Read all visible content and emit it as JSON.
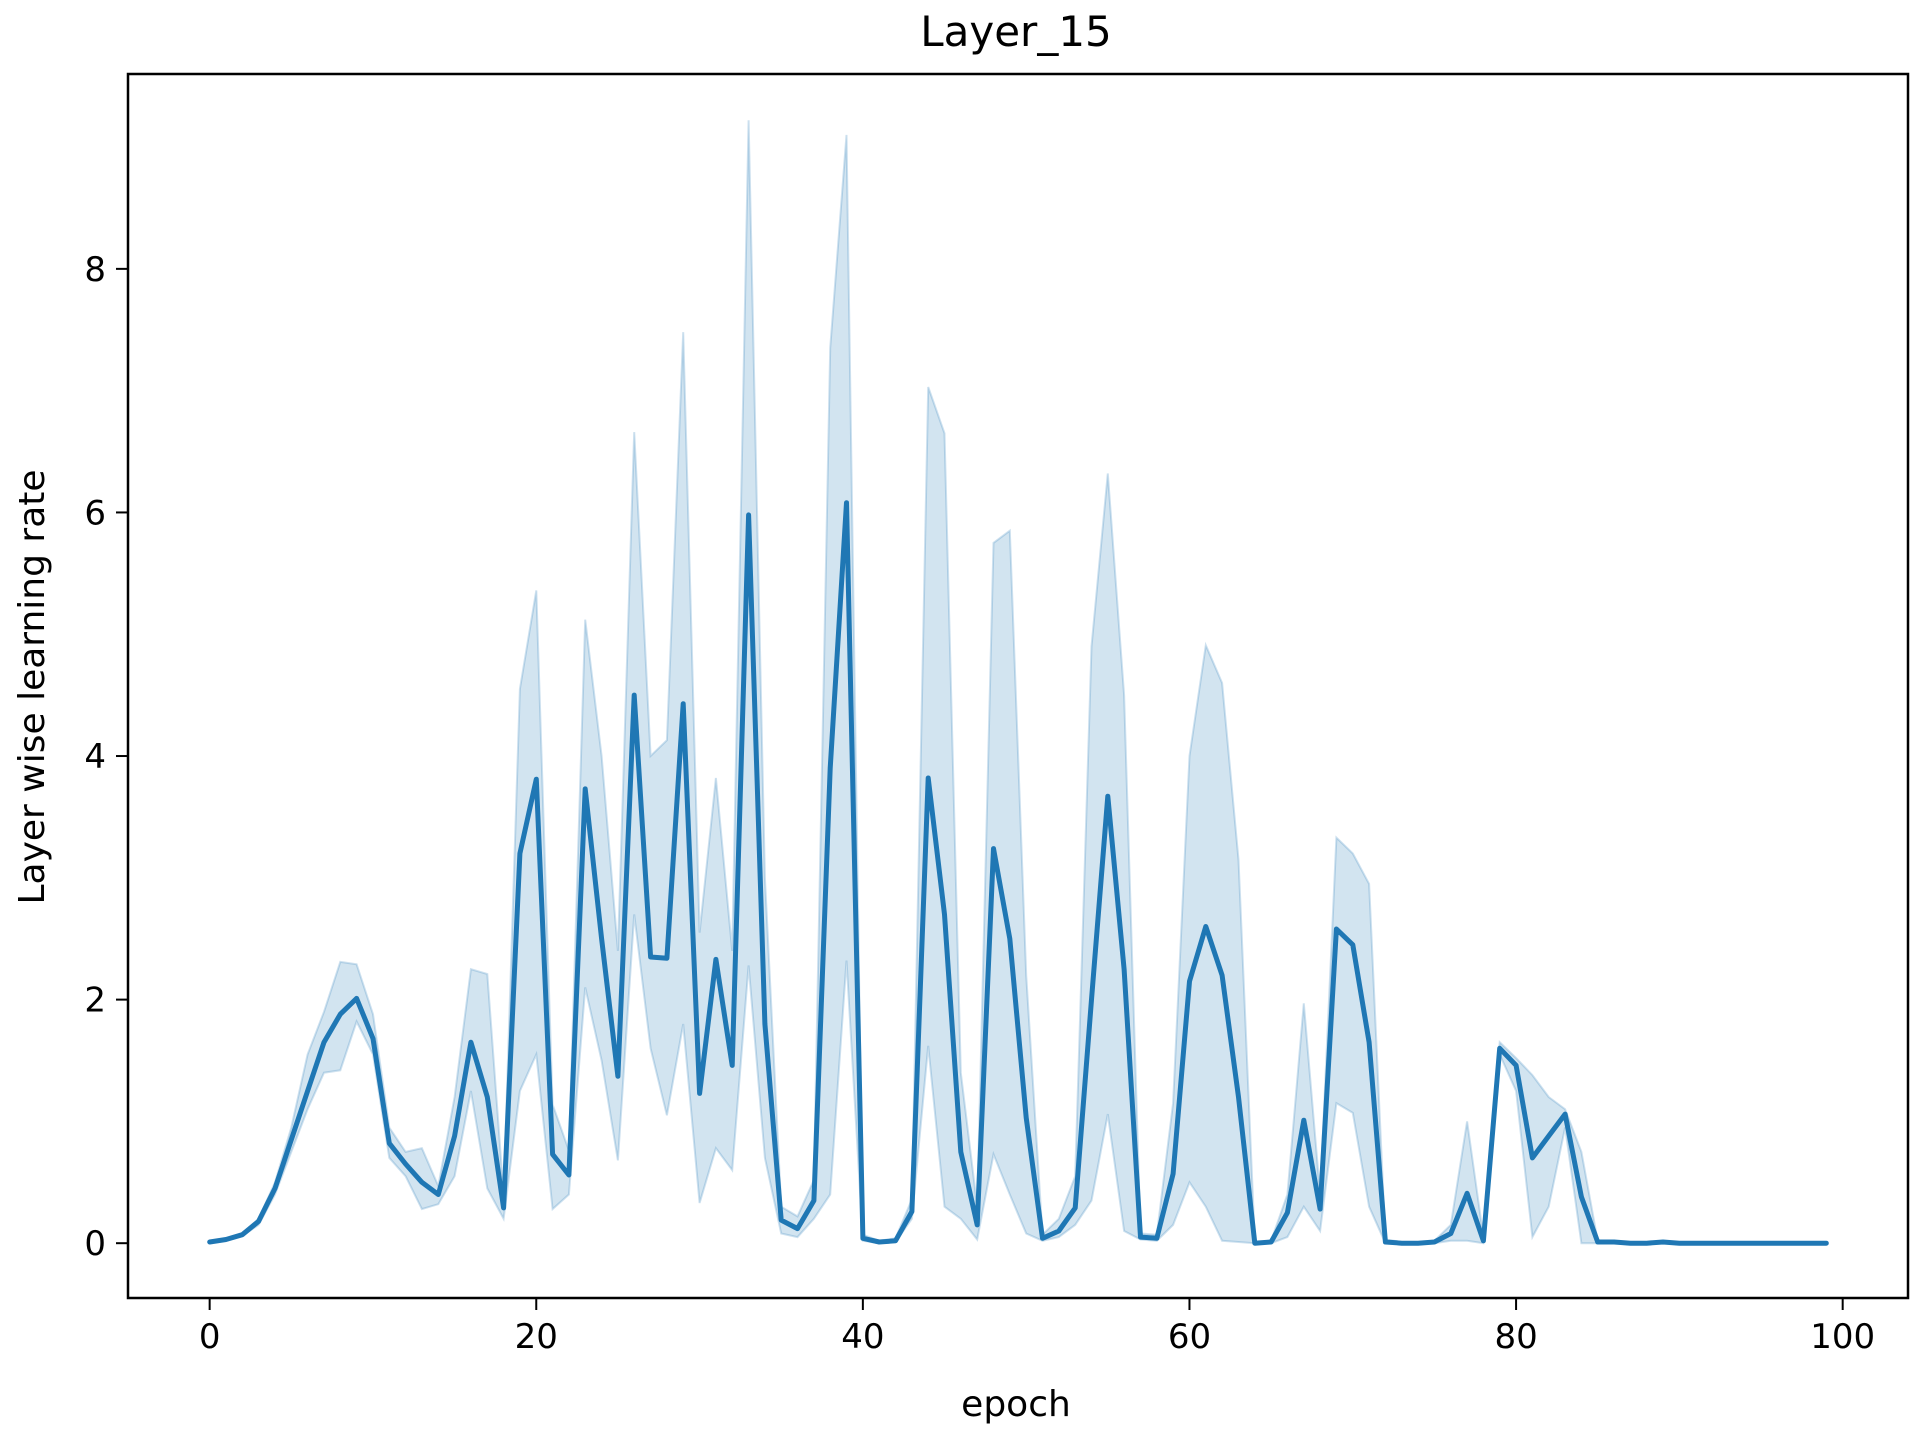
{
  "chart_data": {
    "type": "line",
    "title": "Layer_15",
    "xlabel": "epoch",
    "ylabel": "Layer wise learning rate",
    "xlim": [
      -5,
      104
    ],
    "ylim": [
      -0.45,
      9.6
    ],
    "xticks": [
      0,
      20,
      40,
      60,
      80,
      100
    ],
    "yticks": [
      0,
      2,
      4,
      6,
      8
    ],
    "grid": false,
    "legend": "none",
    "colors": {
      "line": "#1f77b4",
      "band": "#1f77b4"
    },
    "series": [
      {
        "x": [
          0,
          1,
          2,
          3,
          4,
          5,
          6,
          7,
          8,
          9,
          10,
          11,
          12,
          13,
          14,
          15,
          16,
          17,
          18,
          19,
          20,
          21,
          22,
          23,
          24,
          25,
          26,
          27,
          28,
          29,
          30,
          31,
          32,
          33,
          34,
          35,
          36,
          37,
          38,
          39,
          40,
          41,
          42,
          43,
          44,
          45,
          46,
          47,
          48,
          49,
          50,
          51,
          52,
          53,
          54,
          55,
          56,
          57,
          58,
          59,
          60,
          61,
          62,
          63,
          64,
          65,
          66,
          67,
          68,
          69,
          70,
          71,
          72,
          73,
          74,
          75,
          76,
          77,
          78,
          79,
          80,
          81,
          82,
          83,
          84,
          85,
          86,
          87,
          88,
          89,
          90,
          91,
          92,
          93,
          94,
          95,
          96,
          97,
          98,
          99
        ],
        "values": [
          0.01,
          0.03,
          0.07,
          0.18,
          0.45,
          0.85,
          1.25,
          1.65,
          1.88,
          2.01,
          1.68,
          0.82,
          0.65,
          0.5,
          0.4,
          0.88,
          1.65,
          1.2,
          0.29,
          3.2,
          3.81,
          0.73,
          0.56,
          3.73,
          2.5,
          1.37,
          4.5,
          2.35,
          2.34,
          4.43,
          1.23,
          2.33,
          1.46,
          5.98,
          1.8,
          0.19,
          0.12,
          0.35,
          3.9,
          6.08,
          0.04,
          0.01,
          0.02,
          0.26,
          3.82,
          2.7,
          0.75,
          0.15,
          3.24,
          2.5,
          1.03,
          0.04,
          0.1,
          0.29,
          2.0,
          3.67,
          2.25,
          0.05,
          0.04,
          0.57,
          2.15,
          2.6,
          2.2,
          1.2,
          0.0,
          0.01,
          0.25,
          1.01,
          0.28,
          2.58,
          2.45,
          1.65,
          0.01,
          0.0,
          0.0,
          0.01,
          0.08,
          0.41,
          0.02,
          1.6,
          1.46,
          0.7,
          0.88,
          1.06,
          0.38,
          0.01,
          0.01,
          0.0,
          0.0,
          0.01,
          0.0,
          0.0,
          0.0,
          0.0,
          0.0,
          0.0,
          0.0,
          0.0,
          0.0,
          0.0
        ],
        "lower": [
          0.01,
          0.03,
          0.06,
          0.15,
          0.4,
          0.75,
          1.1,
          1.4,
          1.42,
          1.82,
          1.55,
          0.7,
          0.55,
          0.28,
          0.32,
          0.55,
          1.25,
          0.45,
          0.2,
          1.25,
          1.55,
          0.28,
          0.4,
          2.1,
          1.5,
          0.68,
          2.7,
          1.6,
          1.05,
          1.8,
          0.33,
          0.78,
          0.6,
          2.28,
          0.7,
          0.08,
          0.05,
          0.2,
          0.4,
          2.32,
          0.02,
          0.0,
          0.01,
          0.2,
          1.62,
          0.3,
          0.2,
          0.03,
          0.73,
          0.4,
          0.08,
          0.02,
          0.05,
          0.15,
          0.35,
          1.06,
          0.1,
          0.03,
          0.02,
          0.15,
          0.5,
          0.3,
          0.02,
          0.01,
          0.0,
          0.0,
          0.05,
          0.3,
          0.1,
          1.15,
          1.07,
          0.3,
          0.0,
          0.0,
          0.0,
          0.0,
          0.02,
          0.02,
          0.0,
          1.55,
          1.25,
          0.05,
          0.3,
          0.95,
          0.0,
          0.0,
          0.0,
          0.0,
          0.0,
          0.0,
          0.0,
          0.0,
          0.0,
          0.0,
          0.0,
          0.0,
          0.0,
          0.0,
          0.0,
          0.0
        ],
        "upper": [
          0.01,
          0.04,
          0.08,
          0.2,
          0.5,
          0.95,
          1.55,
          1.9,
          2.31,
          2.29,
          1.88,
          0.95,
          0.75,
          0.78,
          0.47,
          1.2,
          2.25,
          2.21,
          0.4,
          4.55,
          5.36,
          1.14,
          0.76,
          5.12,
          4.0,
          2.4,
          6.66,
          4.0,
          4.13,
          7.48,
          2.55,
          3.82,
          2.4,
          9.22,
          3.0,
          0.3,
          0.22,
          0.52,
          7.35,
          9.1,
          0.07,
          0.02,
          0.04,
          0.36,
          7.03,
          6.65,
          1.4,
          0.3,
          5.75,
          5.85,
          2.2,
          0.07,
          0.2,
          0.55,
          4.9,
          6.32,
          4.5,
          0.08,
          0.07,
          1.15,
          4.0,
          4.91,
          4.6,
          3.15,
          0.01,
          0.02,
          0.4,
          1.97,
          0.4,
          3.33,
          3.2,
          2.95,
          0.03,
          0.01,
          0.01,
          0.02,
          0.15,
          1.0,
          0.05,
          1.65,
          1.52,
          1.38,
          1.2,
          1.1,
          0.75,
          0.02,
          0.01,
          0.01,
          0.01,
          0.01,
          0.01,
          0.0,
          0.0,
          0.0,
          0.0,
          0.0,
          0.0,
          0.0,
          0.0,
          0.0
        ]
      }
    ]
  }
}
